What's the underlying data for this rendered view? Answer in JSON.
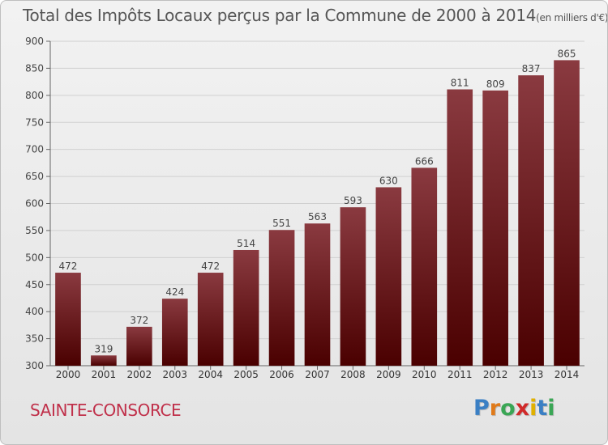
{
  "chart_data": {
    "type": "bar",
    "title": "Total des Impôts Locaux perçus par la Commune de 2000 à 2014",
    "unit_note": "(en milliers d'€)",
    "categories": [
      "2000",
      "2001",
      "2002",
      "2003",
      "2004",
      "2005",
      "2006",
      "2007",
      "2008",
      "2009",
      "2010",
      "2011",
      "2012",
      "2013",
      "2014"
    ],
    "values": [
      472,
      319,
      372,
      424,
      472,
      514,
      551,
      563,
      593,
      630,
      666,
      811,
      809,
      837,
      865
    ],
    "ylim": [
      300,
      900
    ],
    "yticks": [
      300,
      350,
      400,
      450,
      500,
      550,
      600,
      650,
      700,
      750,
      800,
      850,
      900
    ],
    "xlabel": "",
    "ylabel": "",
    "grid": true,
    "bar_color_top": "#8a3a40",
    "bar_color_bottom": "#4a0000"
  },
  "footer": {
    "commune": "SAINTE-CONSORCE",
    "brand_letters": [
      {
        "ch": "P",
        "color": "#3a7fc4"
      },
      {
        "ch": "r",
        "color": "#e07a1a"
      },
      {
        "ch": "o",
        "color": "#3aa655"
      },
      {
        "ch": "x",
        "color": "#d02a2a"
      },
      {
        "ch": "i",
        "color": "#e0b000"
      },
      {
        "ch": "t",
        "color": "#3a7fc4"
      },
      {
        "ch": "i",
        "color": "#3aa655"
      }
    ]
  }
}
